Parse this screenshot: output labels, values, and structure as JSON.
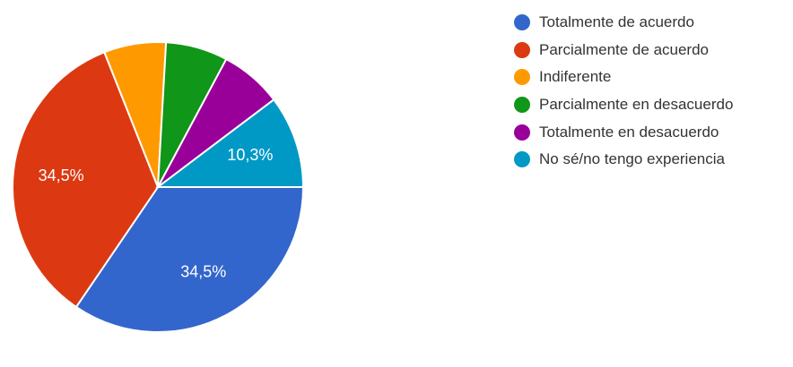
{
  "chart_data": {
    "type": "pie",
    "title": "",
    "legend_position": "right",
    "slices": [
      {
        "label": "Totalmente de acuerdo",
        "value": 34.5,
        "color": "#3366cc",
        "data_label": "34,5%"
      },
      {
        "label": "Parcialmente de acuerdo",
        "value": 34.5,
        "color": "#dc3912",
        "data_label": "34,5%"
      },
      {
        "label": "Indiferente",
        "value": 6.9,
        "color": "#ff9900",
        "data_label": ""
      },
      {
        "label": "Parcialmente en desacuerdo",
        "value": 6.9,
        "color": "#109618",
        "data_label": ""
      },
      {
        "label": "Totalmente en desacuerdo",
        "value": 6.9,
        "color": "#990099",
        "data_label": ""
      },
      {
        "label": "No sé/no tengo experiencia",
        "value": 10.3,
        "color": "#0099c6",
        "data_label": "10,3%"
      }
    ]
  }
}
